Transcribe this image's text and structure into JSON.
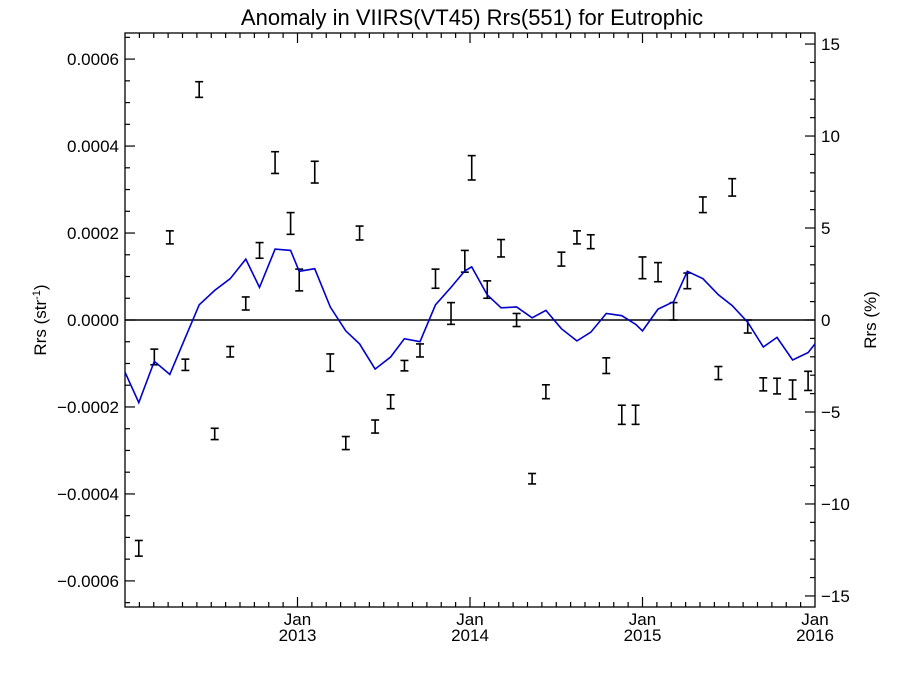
{
  "chart_data": {
    "type": "scatter",
    "title": "Anomaly in VIIRS(VT45) Rrs(551) for Eutrophic",
    "ylabel_left_main": "Rrs (str",
    "ylabel_left_sup": "-1",
    "ylabel_left_close": ")",
    "ylabel_right": "Rrs (%)",
    "xlim": [
      2012.0,
      2016.0
    ],
    "ylim_left": [
      -0.00066,
      0.00066
    ],
    "ylim_right": [
      -15.6,
      15.6
    ],
    "zero_line": true,
    "grid": false,
    "left_ticks": [
      {
        "v": 0.0006,
        "label": "0.0006"
      },
      {
        "v": 0.0004,
        "label": "0.0004"
      },
      {
        "v": 0.0002,
        "label": "0.0002"
      },
      {
        "v": 0.0,
        "label": "0.0000"
      },
      {
        "v": -0.0002,
        "label": "−0.0002"
      },
      {
        "v": -0.0004,
        "label": "−0.0004"
      },
      {
        "v": -0.0006,
        "label": "−0.0006"
      }
    ],
    "right_ticks": [
      {
        "v": 15,
        "label": "15"
      },
      {
        "v": 10,
        "label": "10"
      },
      {
        "v": 5,
        "label": "5"
      },
      {
        "v": 0,
        "label": "0"
      },
      {
        "v": -5,
        "label": "−5"
      },
      {
        "v": -10,
        "label": "−10"
      },
      {
        "v": -15,
        "label": "−15"
      }
    ],
    "x_ticks": [
      {
        "v": 2013.0,
        "month": "Jan",
        "year": "2013"
      },
      {
        "v": 2014.0,
        "month": "Jan",
        "year": "2014"
      },
      {
        "v": 2015.0,
        "month": "Jan",
        "year": "2015"
      },
      {
        "v": 2016.0,
        "month": "Jan",
        "year": "2016"
      }
    ],
    "series": [
      {
        "kind": "errorbar",
        "color": "#000000",
        "points": [
          {
            "x": 2012.08,
            "y": -0.000525,
            "e": 1.8e-05
          },
          {
            "x": 2012.17,
            "y": -8.5e-05,
            "e": 1.8e-05
          },
          {
            "x": 2012.26,
            "y": 0.00019,
            "e": 1.5e-05
          },
          {
            "x": 2012.35,
            "y": -0.000103,
            "e": 1.3e-05
          },
          {
            "x": 2012.43,
            "y": 0.00053,
            "e": 1.8e-05
          },
          {
            "x": 2012.52,
            "y": -0.000262,
            "e": 1.3e-05
          },
          {
            "x": 2012.61,
            "y": -7.3e-05,
            "e": 1.2e-05
          },
          {
            "x": 2012.7,
            "y": 3.8e-05,
            "e": 1.5e-05
          },
          {
            "x": 2012.78,
            "y": 0.00016,
            "e": 1.8e-05
          },
          {
            "x": 2012.87,
            "y": 0.000362,
            "e": 2.5e-05
          },
          {
            "x": 2012.96,
            "y": 0.000222,
            "e": 2.5e-05
          },
          {
            "x": 2013.01,
            "y": 9.2e-05,
            "e": 2.5e-05
          },
          {
            "x": 2013.1,
            "y": 0.00034,
            "e": 2.5e-05
          },
          {
            "x": 2013.19,
            "y": -9.8e-05,
            "e": 2e-05
          },
          {
            "x": 2013.28,
            "y": -0.000283,
            "e": 1.5e-05
          },
          {
            "x": 2013.36,
            "y": 0.0002,
            "e": 1.6e-05
          },
          {
            "x": 2013.45,
            "y": -0.000245,
            "e": 1.5e-05
          },
          {
            "x": 2013.54,
            "y": -0.000188,
            "e": 1.6e-05
          },
          {
            "x": 2013.62,
            "y": -0.000105,
            "e": 1.2e-05
          },
          {
            "x": 2013.71,
            "y": -7e-05,
            "e": 1.5e-05
          },
          {
            "x": 2013.8,
            "y": 9.5e-05,
            "e": 2.2e-05
          },
          {
            "x": 2013.89,
            "y": 1.5e-05,
            "e": 2.5e-05
          },
          {
            "x": 2013.97,
            "y": 0.000135,
            "e": 2.5e-05
          },
          {
            "x": 2014.01,
            "y": 0.00035,
            "e": 2.8e-05
          },
          {
            "x": 2014.1,
            "y": 7e-05,
            "e": 2e-05
          },
          {
            "x": 2014.18,
            "y": 0.000165,
            "e": 2e-05
          },
          {
            "x": 2014.27,
            "y": 0.0,
            "e": 1.5e-05
          },
          {
            "x": 2014.36,
            "y": -0.000365,
            "e": 1.2e-05
          },
          {
            "x": 2014.44,
            "y": -0.000165,
            "e": 1.6e-05
          },
          {
            "x": 2014.53,
            "y": 0.00014,
            "e": 1.6e-05
          },
          {
            "x": 2014.62,
            "y": 0.00019,
            "e": 1.5e-05
          },
          {
            "x": 2014.7,
            "y": 0.00018,
            "e": 1.6e-05
          },
          {
            "x": 2014.79,
            "y": -0.000105,
            "e": 1.8e-05
          },
          {
            "x": 2014.88,
            "y": -0.000218,
            "e": 2.2e-05
          },
          {
            "x": 2014.96,
            "y": -0.000218,
            "e": 2.2e-05
          },
          {
            "x": 2015.0,
            "y": 0.00012,
            "e": 2.5e-05
          },
          {
            "x": 2015.09,
            "y": 0.00011,
            "e": 2.2e-05
          },
          {
            "x": 2015.18,
            "y": 2e-05,
            "e": 2e-05
          },
          {
            "x": 2015.26,
            "y": 9e-05,
            "e": 1.8e-05
          },
          {
            "x": 2015.35,
            "y": 0.000265,
            "e": 1.8e-05
          },
          {
            "x": 2015.44,
            "y": -0.000122,
            "e": 1.5e-05
          },
          {
            "x": 2015.52,
            "y": 0.000305,
            "e": 2e-05
          },
          {
            "x": 2015.61,
            "y": -1.5e-05,
            "e": 1.5e-05
          },
          {
            "x": 2015.7,
            "y": -0.000148,
            "e": 1.5e-05
          },
          {
            "x": 2015.78,
            "y": -0.000152,
            "e": 1.8e-05
          },
          {
            "x": 2015.87,
            "y": -0.00016,
            "e": 2.2e-05
          },
          {
            "x": 2015.96,
            "y": -0.00014,
            "e": 2.2e-05
          }
        ]
      },
      {
        "kind": "line",
        "color": "#0000cc",
        "points": [
          {
            "x": 2012.0,
            "y": -0.00012
          },
          {
            "x": 2012.08,
            "y": -0.00019
          },
          {
            "x": 2012.17,
            "y": -9.5e-05
          },
          {
            "x": 2012.26,
            "y": -0.000125
          },
          {
            "x": 2012.35,
            "y": -4e-05
          },
          {
            "x": 2012.43,
            "y": 3.5e-05
          },
          {
            "x": 2012.52,
            "y": 6.8e-05
          },
          {
            "x": 2012.61,
            "y": 9.5e-05
          },
          {
            "x": 2012.7,
            "y": 0.00014
          },
          {
            "x": 2012.78,
            "y": 7.5e-05
          },
          {
            "x": 2012.87,
            "y": 0.000163
          },
          {
            "x": 2012.96,
            "y": 0.00016
          },
          {
            "x": 2013.01,
            "y": 0.000112
          },
          {
            "x": 2013.1,
            "y": 0.000118
          },
          {
            "x": 2013.19,
            "y": 3e-05
          },
          {
            "x": 2013.28,
            "y": -2.5e-05
          },
          {
            "x": 2013.36,
            "y": -5.5e-05
          },
          {
            "x": 2013.45,
            "y": -0.000113
          },
          {
            "x": 2013.54,
            "y": -8.5e-05
          },
          {
            "x": 2013.62,
            "y": -4.3e-05
          },
          {
            "x": 2013.71,
            "y": -5e-05
          },
          {
            "x": 2013.8,
            "y": 3.5e-05
          },
          {
            "x": 2013.89,
            "y": 7.5e-05
          },
          {
            "x": 2013.97,
            "y": 0.000113
          },
          {
            "x": 2014.01,
            "y": 0.000122
          },
          {
            "x": 2014.1,
            "y": 5.8e-05
          },
          {
            "x": 2014.18,
            "y": 2.8e-05
          },
          {
            "x": 2014.27,
            "y": 3e-05
          },
          {
            "x": 2014.36,
            "y": 5e-06
          },
          {
            "x": 2014.44,
            "y": 2.2e-05
          },
          {
            "x": 2014.53,
            "y": -2e-05
          },
          {
            "x": 2014.62,
            "y": -4.8e-05
          },
          {
            "x": 2014.7,
            "y": -2.8e-05
          },
          {
            "x": 2014.79,
            "y": 1.5e-05
          },
          {
            "x": 2014.88,
            "y": 1e-05
          },
          {
            "x": 2014.96,
            "y": -1e-05
          },
          {
            "x": 2015.0,
            "y": -2.5e-05
          },
          {
            "x": 2015.09,
            "y": 2.5e-05
          },
          {
            "x": 2015.18,
            "y": 4.2e-05
          },
          {
            "x": 2015.26,
            "y": 0.000112
          },
          {
            "x": 2015.35,
            "y": 9.5e-05
          },
          {
            "x": 2015.44,
            "y": 5.8e-05
          },
          {
            "x": 2015.52,
            "y": 3.3e-05
          },
          {
            "x": 2015.61,
            "y": -5e-06
          },
          {
            "x": 2015.7,
            "y": -6.2e-05
          },
          {
            "x": 2015.78,
            "y": -4e-05
          },
          {
            "x": 2015.87,
            "y": -9.2e-05
          },
          {
            "x": 2015.96,
            "y": -7.5e-05
          },
          {
            "x": 2016.0,
            "y": -5.5e-05
          }
        ]
      }
    ]
  }
}
